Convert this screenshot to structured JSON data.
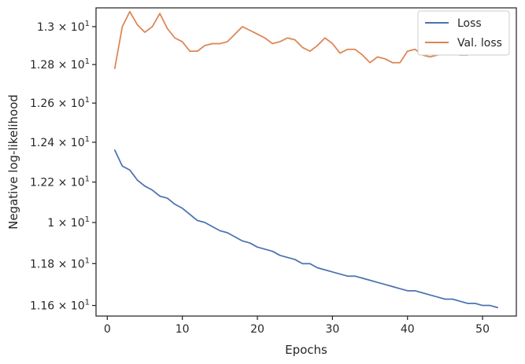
{
  "chart_data": {
    "type": "line",
    "xlabel": "Epochs",
    "ylabel": "Negative log-likelihood",
    "xlim": [
      -1.5,
      54.5
    ],
    "ylim": [
      11.55,
      13.1
    ],
    "y_scale": "log",
    "grid": false,
    "legend_position": "top-right",
    "x_ticks": [
      0,
      10,
      20,
      30,
      40,
      50
    ],
    "x_tick_labels": [
      "0",
      "10",
      "20",
      "30",
      "40",
      "50"
    ],
    "y_ticks": [
      11.6,
      11.8,
      12.0,
      12.2,
      12.4,
      12.6,
      12.8,
      13.0
    ],
    "y_tick_labels": [
      {
        "mantissa": "1.16",
        "base": "10",
        "exp": "1"
      },
      {
        "mantissa": "1.18",
        "base": "10",
        "exp": "1"
      },
      {
        "mantissa": "1",
        "base": "10",
        "exp": "1"
      },
      {
        "mantissa": "1.22",
        "base": "10",
        "exp": "1"
      },
      {
        "mantissa": "1.24",
        "base": "10",
        "exp": "1"
      },
      {
        "mantissa": "1.26",
        "base": "10",
        "exp": "1"
      },
      {
        "mantissa": "1.28",
        "base": "10",
        "exp": "1"
      },
      {
        "mantissa": "1.3",
        "base": "10",
        "exp": "1"
      }
    ],
    "x": [
      1,
      2,
      3,
      4,
      5,
      6,
      7,
      8,
      9,
      10,
      11,
      12,
      13,
      14,
      15,
      16,
      17,
      18,
      19,
      20,
      21,
      22,
      23,
      24,
      25,
      26,
      27,
      28,
      29,
      30,
      31,
      32,
      33,
      34,
      35,
      36,
      37,
      38,
      39,
      40,
      41,
      42,
      43,
      44,
      45,
      46,
      47,
      48,
      49,
      50,
      51,
      52
    ],
    "series": [
      {
        "name": "Loss",
        "color": "#4c72b0",
        "values": [
          12.36,
          12.28,
          12.26,
          12.21,
          12.18,
          12.16,
          12.13,
          12.12,
          12.09,
          12.07,
          12.04,
          12.01,
          12.0,
          11.98,
          11.96,
          11.95,
          11.93,
          11.91,
          11.9,
          11.88,
          11.87,
          11.86,
          11.84,
          11.83,
          11.82,
          11.8,
          11.8,
          11.78,
          11.77,
          11.76,
          11.75,
          11.74,
          11.74,
          11.73,
          11.72,
          11.71,
          11.7,
          11.69,
          11.68,
          11.67,
          11.67,
          11.66,
          11.65,
          11.64,
          11.63,
          11.63,
          11.62,
          11.61,
          11.61,
          11.6,
          11.6,
          11.59
        ]
      },
      {
        "name": "Val. loss",
        "color": "#dd8452",
        "values": [
          12.78,
          13.0,
          13.08,
          13.01,
          12.97,
          13.0,
          13.07,
          12.99,
          12.94,
          12.92,
          12.87,
          12.87,
          12.9,
          12.91,
          12.91,
          12.92,
          12.96,
          13.0,
          12.98,
          12.96,
          12.94,
          12.91,
          12.92,
          12.94,
          12.93,
          12.89,
          12.87,
          12.9,
          12.94,
          12.91,
          12.86,
          12.88,
          12.88,
          12.85,
          12.81,
          12.84,
          12.83,
          12.81,
          12.81,
          12.87,
          12.88,
          12.85,
          12.84,
          12.85,
          12.86,
          12.86,
          12.85,
          12.85,
          12.87,
          12.88,
          12.87,
          12.87
        ]
      }
    ]
  }
}
